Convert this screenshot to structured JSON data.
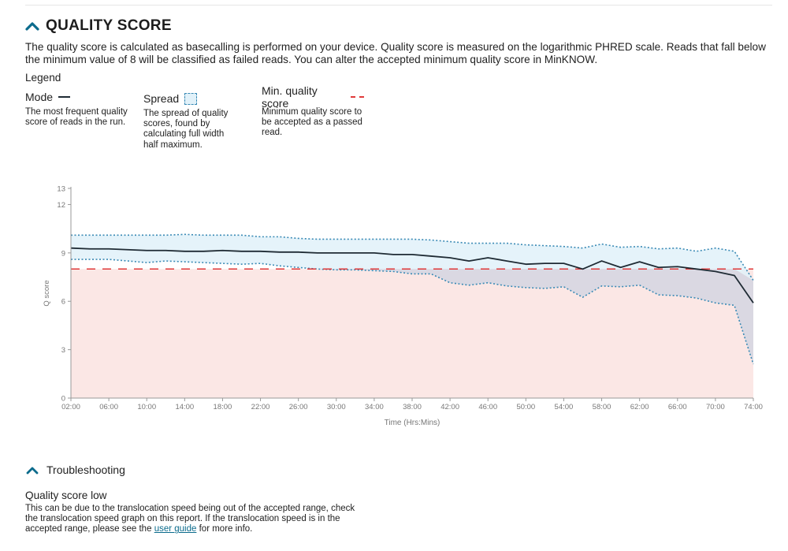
{
  "section": {
    "title": "QUALITY SCORE",
    "description": "The quality score is calculated as basecalling is performed on your device. Quality score is measured on the logarithmic PHRED scale. Reads that fall below the minimum value of 8 will be classified as failed reads. You can alter the accepted minimum quality score in MinKNOW."
  },
  "legend": {
    "title": "Legend",
    "mode": {
      "label": "Mode",
      "description": "The most frequent quality score of reads in the run."
    },
    "spread": {
      "label": "Spread",
      "description": "The spread of quality scores, found by calculating full width half maximum."
    },
    "min_quality": {
      "label": "Min. quality score",
      "description": "Minimum quality score to be accepted as a passed read."
    }
  },
  "chart_data": {
    "type": "line",
    "xlabel": "Time (Hrs:Mins)",
    "ylabel": "Q score",
    "x_tick_labels": [
      "02:00",
      "06:00",
      "10:00",
      "14:00",
      "18:00",
      "22:00",
      "26:00",
      "30:00",
      "34:00",
      "38:00",
      "42:00",
      "46:00",
      "50:00",
      "54:00",
      "58:00",
      "62:00",
      "66:00",
      "70:00",
      "74:00"
    ],
    "y_ticks": [
      0,
      3,
      6,
      9,
      12,
      13
    ],
    "xlim": [
      2,
      74
    ],
    "ylim": [
      0,
      13
    ],
    "min_quality_score": 8,
    "grid": false,
    "x": [
      2,
      4,
      6,
      8,
      10,
      12,
      14,
      16,
      18,
      20,
      22,
      24,
      26,
      28,
      30,
      32,
      34,
      36,
      38,
      40,
      42,
      44,
      46,
      48,
      50,
      52,
      54,
      56,
      58,
      60,
      62,
      64,
      66,
      68,
      70,
      72,
      74
    ],
    "series": [
      {
        "name": "Mode",
        "values": [
          9.3,
          9.25,
          9.25,
          9.2,
          9.15,
          9.15,
          9.1,
          9.1,
          9.15,
          9.1,
          9.1,
          9.05,
          9.05,
          9.0,
          9.0,
          9.0,
          9.0,
          8.9,
          8.9,
          8.8,
          8.7,
          8.5,
          8.7,
          8.5,
          8.3,
          8.35,
          8.35,
          8.0,
          8.5,
          8.1,
          8.45,
          8.1,
          8.15,
          8.0,
          7.85,
          7.6,
          5.9
        ]
      },
      {
        "name": "Spread upper",
        "values": [
          10.1,
          10.1,
          10.1,
          10.1,
          10.1,
          10.1,
          10.15,
          10.1,
          10.1,
          10.1,
          10.0,
          10.0,
          9.9,
          9.85,
          9.85,
          9.85,
          9.85,
          9.85,
          9.85,
          9.8,
          9.7,
          9.6,
          9.6,
          9.6,
          9.5,
          9.45,
          9.4,
          9.3,
          9.55,
          9.35,
          9.4,
          9.25,
          9.3,
          9.1,
          9.3,
          9.1,
          7.3
        ]
      },
      {
        "name": "Spread lower",
        "values": [
          8.6,
          8.6,
          8.6,
          8.5,
          8.4,
          8.5,
          8.45,
          8.4,
          8.35,
          8.3,
          8.35,
          8.2,
          8.1,
          8.0,
          7.95,
          7.95,
          7.9,
          7.85,
          7.7,
          7.7,
          7.15,
          7.0,
          7.15,
          6.95,
          6.85,
          6.8,
          6.9,
          6.25,
          6.95,
          6.9,
          7.0,
          6.4,
          6.35,
          6.2,
          5.9,
          5.75,
          2.1
        ]
      }
    ]
  },
  "troubleshooting": {
    "title": "Troubleshooting",
    "issue_title": "Quality score low",
    "text_before": "This can be due to the translocation speed being out of the accepted range, check the translocation speed graph on this report. If the translocation speed is in the accepted range, please see the ",
    "link_text": "user guide",
    "text_after": " for more info."
  },
  "colors": {
    "accent": "#0b6b8c",
    "mode_line": "#1f2b34",
    "spread_fill": "#e1f1f9",
    "spread_line": "#3a8ab5",
    "min_line": "#e03a3a",
    "fail_fill": "#fbe7e5"
  }
}
